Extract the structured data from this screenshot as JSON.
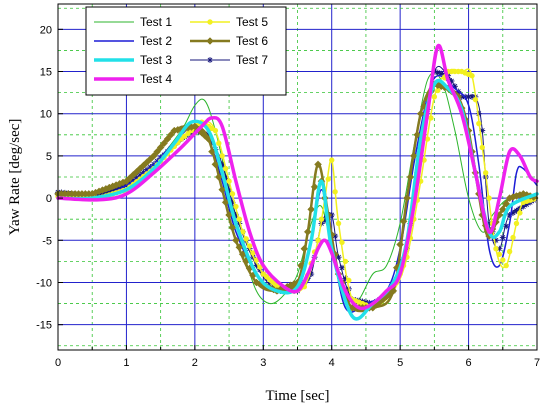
{
  "chart_data": {
    "type": "line",
    "xlabel": "Time [sec]",
    "ylabel": "Yaw Rate [deg/sec]",
    "xlim": [
      0,
      7
    ],
    "ylim": [
      -18,
      23
    ],
    "xticks": [
      0,
      1,
      2,
      3,
      4,
      5,
      6,
      7
    ],
    "yticks": [
      -15,
      -10,
      -5,
      0,
      5,
      10,
      15,
      20
    ],
    "grid": true,
    "legend_placement": "top-center",
    "series": [
      {
        "name": "Test 1",
        "color": "#2db52d",
        "width": 1,
        "marker": "none",
        "points": [
          [
            0,
            0.5
          ],
          [
            0.5,
            0.3
          ],
          [
            1,
            1.5
          ],
          [
            1.4,
            4
          ],
          [
            1.8,
            8
          ],
          [
            2.0,
            11
          ],
          [
            2.15,
            11.5
          ],
          [
            2.3,
            8
          ],
          [
            2.5,
            1
          ],
          [
            2.7,
            -6
          ],
          [
            2.9,
            -11
          ],
          [
            3.1,
            -12.5
          ],
          [
            3.3,
            -11.5
          ],
          [
            3.5,
            -9
          ],
          [
            3.7,
            -3
          ],
          [
            3.85,
            -1
          ],
          [
            4.0,
            -6
          ],
          [
            4.2,
            -13
          ],
          [
            4.4,
            -12
          ],
          [
            4.6,
            -9
          ],
          [
            4.8,
            -8
          ],
          [
            5.0,
            -3
          ],
          [
            5.2,
            6
          ],
          [
            5.4,
            14
          ],
          [
            5.6,
            14
          ],
          [
            5.8,
            8
          ],
          [
            6.0,
            0
          ],
          [
            6.2,
            -4
          ],
          [
            6.35,
            -2
          ],
          [
            6.6,
            0
          ],
          [
            7,
            0
          ]
        ]
      },
      {
        "name": "Test 2",
        "color": "#1c1cd6",
        "width": 1.5,
        "marker": "none",
        "points": [
          [
            0,
            0.3
          ],
          [
            0.5,
            0
          ],
          [
            1,
            1.5
          ],
          [
            1.4,
            4
          ],
          [
            1.8,
            7.5
          ],
          [
            2.0,
            8.5
          ],
          [
            2.2,
            7
          ],
          [
            2.4,
            2
          ],
          [
            2.6,
            -4
          ],
          [
            2.9,
            -9
          ],
          [
            3.2,
            -11
          ],
          [
            3.5,
            -10.5
          ],
          [
            3.7,
            -5
          ],
          [
            3.85,
            1
          ],
          [
            4.0,
            -5
          ],
          [
            4.2,
            -13
          ],
          [
            4.5,
            -12.5
          ],
          [
            4.8,
            -11
          ],
          [
            5.0,
            -6
          ],
          [
            5.2,
            4
          ],
          [
            5.4,
            12
          ],
          [
            5.55,
            14.5
          ],
          [
            5.8,
            13
          ],
          [
            6.0,
            11
          ],
          [
            6.15,
            4
          ],
          [
            6.3,
            -6
          ],
          [
            6.45,
            -8
          ],
          [
            6.6,
            -3
          ],
          [
            6.7,
            3
          ],
          [
            6.8,
            3.5
          ],
          [
            7,
            1.5
          ]
        ]
      },
      {
        "name": "Test 3",
        "color": "#22e0e8",
        "width": 3.5,
        "marker": "none",
        "points": [
          [
            0,
            0
          ],
          [
            0.5,
            0
          ],
          [
            1,
            1
          ],
          [
            1.4,
            3.5
          ],
          [
            1.7,
            6.5
          ],
          [
            1.95,
            9
          ],
          [
            2.2,
            8
          ],
          [
            2.4,
            3
          ],
          [
            2.6,
            -3
          ],
          [
            2.9,
            -9
          ],
          [
            3.2,
            -11
          ],
          [
            3.5,
            -10.5
          ],
          [
            3.7,
            -5
          ],
          [
            3.85,
            2
          ],
          [
            4.0,
            -6
          ],
          [
            4.3,
            -14
          ],
          [
            4.6,
            -12.5
          ],
          [
            4.9,
            -10
          ],
          [
            5.1,
            -5
          ],
          [
            5.3,
            7
          ],
          [
            5.5,
            13.5
          ],
          [
            5.7,
            13
          ],
          [
            5.9,
            10.5
          ],
          [
            6.1,
            3
          ],
          [
            6.3,
            -4
          ],
          [
            6.45,
            -4
          ],
          [
            6.6,
            -1
          ],
          [
            7,
            0.5
          ]
        ]
      },
      {
        "name": "Test 4",
        "color": "#ee22ee",
        "width": 3.5,
        "marker": "none",
        "points": [
          [
            0,
            0
          ],
          [
            0.6,
            -0.2
          ],
          [
            1.0,
            0.5
          ],
          [
            1.4,
            3
          ],
          [
            1.8,
            6
          ],
          [
            2.1,
            8.5
          ],
          [
            2.25,
            9.5
          ],
          [
            2.4,
            8.5
          ],
          [
            2.6,
            2
          ],
          [
            2.8,
            -4
          ],
          [
            3.0,
            -8
          ],
          [
            3.3,
            -10.5
          ],
          [
            3.5,
            -11
          ],
          [
            3.65,
            -9
          ],
          [
            3.8,
            -6
          ],
          [
            3.9,
            -5
          ],
          [
            4.0,
            -6.5
          ],
          [
            4.2,
            -11
          ],
          [
            4.4,
            -13
          ],
          [
            4.6,
            -12.5
          ],
          [
            4.8,
            -11
          ],
          [
            5.0,
            -9
          ],
          [
            5.2,
            -1
          ],
          [
            5.4,
            10
          ],
          [
            5.55,
            18
          ],
          [
            5.7,
            14
          ],
          [
            5.9,
            10
          ],
          [
            6.1,
            3
          ],
          [
            6.3,
            -4
          ],
          [
            6.45,
            0
          ],
          [
            6.6,
            5.5
          ],
          [
            6.75,
            5
          ],
          [
            6.9,
            2.5
          ],
          [
            7,
            2
          ]
        ]
      },
      {
        "name": "Test 5",
        "color": "#f2f020",
        "width": 1.5,
        "marker": "dot",
        "points": [
          [
            0,
            0.2
          ],
          [
            0.6,
            0
          ],
          [
            1,
            1
          ],
          [
            1.4,
            3.5
          ],
          [
            1.8,
            7
          ],
          [
            2.1,
            9
          ],
          [
            2.3,
            8
          ],
          [
            2.5,
            2
          ],
          [
            2.7,
            -4
          ],
          [
            3.0,
            -9
          ],
          [
            3.3,
            -11
          ],
          [
            3.6,
            -10.5
          ],
          [
            3.8,
            -5
          ],
          [
            3.9,
            0
          ],
          [
            4.0,
            4.5
          ],
          [
            4.1,
            -3
          ],
          [
            4.3,
            -12
          ],
          [
            4.6,
            -13
          ],
          [
            4.9,
            -11
          ],
          [
            5.1,
            -7
          ],
          [
            5.3,
            2
          ],
          [
            5.5,
            12
          ],
          [
            5.7,
            15
          ],
          [
            5.9,
            15
          ],
          [
            6.05,
            14.5
          ],
          [
            6.2,
            6
          ],
          [
            6.4,
            -6
          ],
          [
            6.55,
            -8
          ],
          [
            6.7,
            -3
          ],
          [
            6.8,
            -0.5
          ],
          [
            7,
            0
          ]
        ]
      },
      {
        "name": "Test 6",
        "color": "#857a20",
        "width": 2.5,
        "marker": "diamond",
        "points": [
          [
            0,
            0.5
          ],
          [
            0.5,
            0.5
          ],
          [
            1,
            2
          ],
          [
            1.4,
            5
          ],
          [
            1.7,
            8
          ],
          [
            2.0,
            8.5
          ],
          [
            2.2,
            7
          ],
          [
            2.4,
            1
          ],
          [
            2.6,
            -5
          ],
          [
            2.9,
            -10
          ],
          [
            3.2,
            -11
          ],
          [
            3.5,
            -10
          ],
          [
            3.65,
            -4
          ],
          [
            3.8,
            4
          ],
          [
            3.95,
            -2
          ],
          [
            4.1,
            -9
          ],
          [
            4.3,
            -13
          ],
          [
            4.6,
            -13
          ],
          [
            4.9,
            -11
          ],
          [
            5.1,
            0
          ],
          [
            5.3,
            10
          ],
          [
            5.5,
            13.5
          ],
          [
            5.7,
            13
          ],
          [
            5.85,
            12
          ],
          [
            6.0,
            8
          ],
          [
            6.2,
            -2
          ],
          [
            6.3,
            -4.5
          ],
          [
            6.45,
            -2
          ],
          [
            6.6,
            0
          ],
          [
            6.8,
            0.5
          ],
          [
            7,
            0
          ]
        ]
      },
      {
        "name": "Test 7",
        "color": "#14147a",
        "width": 1,
        "marker": "star",
        "points": [
          [
            0,
            0.7
          ],
          [
            0.5,
            0.3
          ],
          [
            1,
            1.5
          ],
          [
            1.4,
            4
          ],
          [
            1.8,
            7
          ],
          [
            2.0,
            8
          ],
          [
            2.2,
            7.5
          ],
          [
            2.4,
            4
          ],
          [
            2.6,
            -2
          ],
          [
            2.9,
            -8
          ],
          [
            3.2,
            -11
          ],
          [
            3.5,
            -11
          ],
          [
            3.7,
            -9
          ],
          [
            3.85,
            -3
          ],
          [
            4.0,
            -2
          ],
          [
            4.1,
            -7
          ],
          [
            4.3,
            -12
          ],
          [
            4.6,
            -12.5
          ],
          [
            4.9,
            -11
          ],
          [
            5.1,
            -6
          ],
          [
            5.3,
            6
          ],
          [
            5.5,
            15
          ],
          [
            5.7,
            14.5
          ],
          [
            5.9,
            12
          ],
          [
            6.1,
            12
          ],
          [
            6.2,
            8
          ],
          [
            6.3,
            -3
          ],
          [
            6.45,
            -6
          ],
          [
            6.6,
            -2
          ],
          [
            7,
            0
          ]
        ]
      }
    ]
  }
}
